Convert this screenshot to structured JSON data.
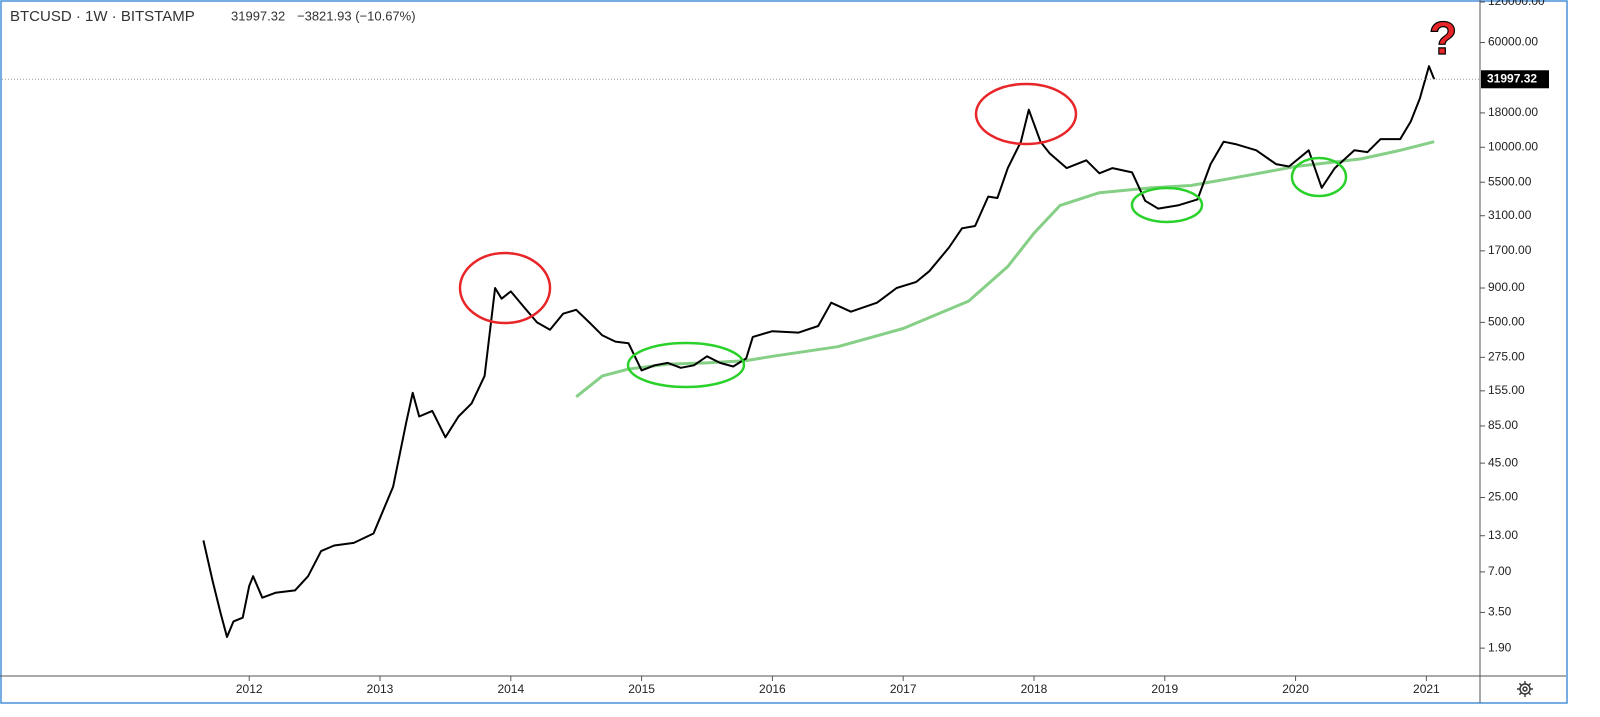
{
  "chart_data": {
    "type": "line",
    "header": {
      "symbol": "BTCUSD · 1W · BITSTAMP",
      "last": "31997.32",
      "change": "−3821.93 (−10.67%)"
    },
    "annotation": "?",
    "log_scale": true,
    "xlim": [
      2010.11,
      2021.41
    ],
    "xticks": [
      2012,
      2013,
      2014,
      2015,
      2016,
      2017,
      2018,
      2019,
      2020,
      2021
    ],
    "ylim": [
      1.2,
      120000
    ],
    "yticks": [
      {
        "value": 120000,
        "label": "120000.00"
      },
      {
        "value": 60000,
        "label": "60000.00"
      },
      {
        "value": 18000,
        "label": "18000.00"
      },
      {
        "value": 10000,
        "label": "10000.00"
      },
      {
        "value": 5500,
        "label": "5500.00"
      },
      {
        "value": 3100,
        "label": "3100.00"
      },
      {
        "value": 1700,
        "label": "1700.00"
      },
      {
        "value": 900,
        "label": "900.00"
      },
      {
        "value": 500,
        "label": "500.00"
      },
      {
        "value": 275,
        "label": "275.00"
      },
      {
        "value": 155,
        "label": "155.00"
      },
      {
        "value": 85,
        "label": "85.00"
      },
      {
        "value": 45,
        "label": "45.00"
      },
      {
        "value": 25,
        "label": "25.00"
      },
      {
        "value": 13,
        "label": "13.00"
      },
      {
        "value": 7,
        "label": "7.00"
      },
      {
        "value": 3.5,
        "label": "3.50"
      },
      {
        "value": 1.9,
        "label": "1.90"
      }
    ],
    "series": [
      {
        "color": "#000000",
        "x": [
          2011.65,
          2011.72,
          2011.78,
          2011.83,
          2011.88,
          2011.95,
          2012.0,
          2012.03,
          2012.1,
          2012.2,
          2012.35,
          2012.45,
          2012.55,
          2012.65,
          2012.8,
          2012.95,
          2013.1,
          2013.2,
          2013.25,
          2013.3,
          2013.4,
          2013.5,
          2013.6,
          2013.7,
          2013.8,
          2013.88,
          2013.93,
          2014.0,
          2014.1,
          2014.2,
          2014.3,
          2014.4,
          2014.5,
          2014.6,
          2014.7,
          2014.8,
          2014.9,
          2015.0,
          2015.1,
          2015.2,
          2015.3,
          2015.4,
          2015.5,
          2015.6,
          2015.7,
          2015.8,
          2015.85,
          2016.0,
          2016.2,
          2016.35,
          2016.45,
          2016.6,
          2016.8,
          2016.95,
          2017.1,
          2017.2,
          2017.35,
          2017.45,
          2017.55,
          2017.65,
          2017.72,
          2017.8,
          2017.9,
          2017.96,
          2018.05,
          2018.12,
          2018.25,
          2018.4,
          2018.5,
          2018.6,
          2018.75,
          2018.85,
          2018.95,
          2019.1,
          2019.25,
          2019.35,
          2019.45,
          2019.55,
          2019.7,
          2019.85,
          2019.95,
          2020.1,
          2020.2,
          2020.3,
          2020.45,
          2020.55,
          2020.65,
          2020.8,
          2020.88,
          2020.95,
          2021.02,
          2021.06
        ],
        "values": [
          12,
          6,
          3.5,
          2.3,
          3,
          3.2,
          5.5,
          6.5,
          4.5,
          4.9,
          5.1,
          6.5,
          10,
          11,
          11.5,
          13.5,
          30,
          90,
          150,
          100,
          110,
          70,
          100,
          125,
          200,
          900,
          750,
          850,
          650,
          500,
          440,
          580,
          620,
          500,
          400,
          360,
          350,
          220,
          240,
          250,
          230,
          240,
          280,
          250,
          235,
          270,
          390,
          430,
          420,
          470,
          700,
          600,
          700,
          900,
          1000,
          1200,
          1800,
          2500,
          2600,
          4300,
          4200,
          7000,
          11000,
          19000,
          11000,
          9000,
          7000,
          8000,
          6400,
          7000,
          6500,
          4000,
          3500,
          3700,
          4100,
          7500,
          11000,
          10500,
          9500,
          7500,
          7200,
          9500,
          5000,
          7000,
          9500,
          9200,
          11500,
          11500,
          15500,
          23000,
          40000,
          31997.32
        ]
      },
      {
        "color": "#86cf86",
        "x": [
          2014.5,
          2014.7,
          2014.9,
          2015.2,
          2015.5,
          2015.8,
          2016.0,
          2016.5,
          2017.0,
          2017.5,
          2017.8,
          2018.0,
          2018.2,
          2018.5,
          2018.9,
          2019.2,
          2019.6,
          2020.0,
          2020.5,
          2020.8,
          2021.06
        ],
        "values": [
          140,
          200,
          225,
          245,
          250,
          260,
          280,
          330,
          450,
          720,
          1300,
          2300,
          3700,
          4600,
          5000,
          5200,
          6100,
          7200,
          8200,
          9500,
          11000
        ]
      }
    ]
  }
}
